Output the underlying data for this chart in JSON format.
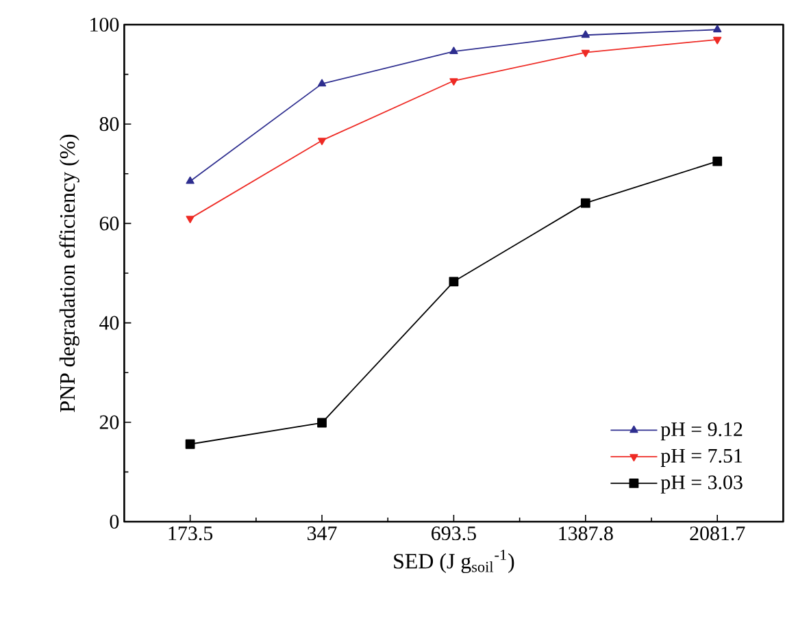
{
  "chart_data": {
    "type": "line",
    "xlabel": "SED (J g$_{soil}$$^{-1}$)",
    "ylabel": "PNP degradation efficiency (%)",
    "categories": [
      "173.5",
      "347",
      "693.5",
      "1387.8",
      "2081.7"
    ],
    "series": [
      {
        "name": "pH = 9.12",
        "color": "#2e2e8f",
        "marker": "triangle",
        "values": [
          68.5,
          88.1,
          94.6,
          97.9,
          99.0
        ]
      },
      {
        "name": "pH = 7.51",
        "color": "#ee2a24",
        "marker": "triangle-down",
        "values": [
          61.0,
          76.7,
          88.7,
          94.4,
          97.0
        ]
      },
      {
        "name": "pH = 3.03",
        "color": "#000000",
        "marker": "square",
        "values": [
          15.6,
          19.9,
          48.3,
          64.1,
          72.5
        ]
      }
    ],
    "ylim": [
      0,
      100
    ],
    "yticks": [
      0,
      20,
      40,
      60,
      80,
      100
    ],
    "grid": false,
    "legend": "bottom right",
    "line_style": "solid"
  }
}
